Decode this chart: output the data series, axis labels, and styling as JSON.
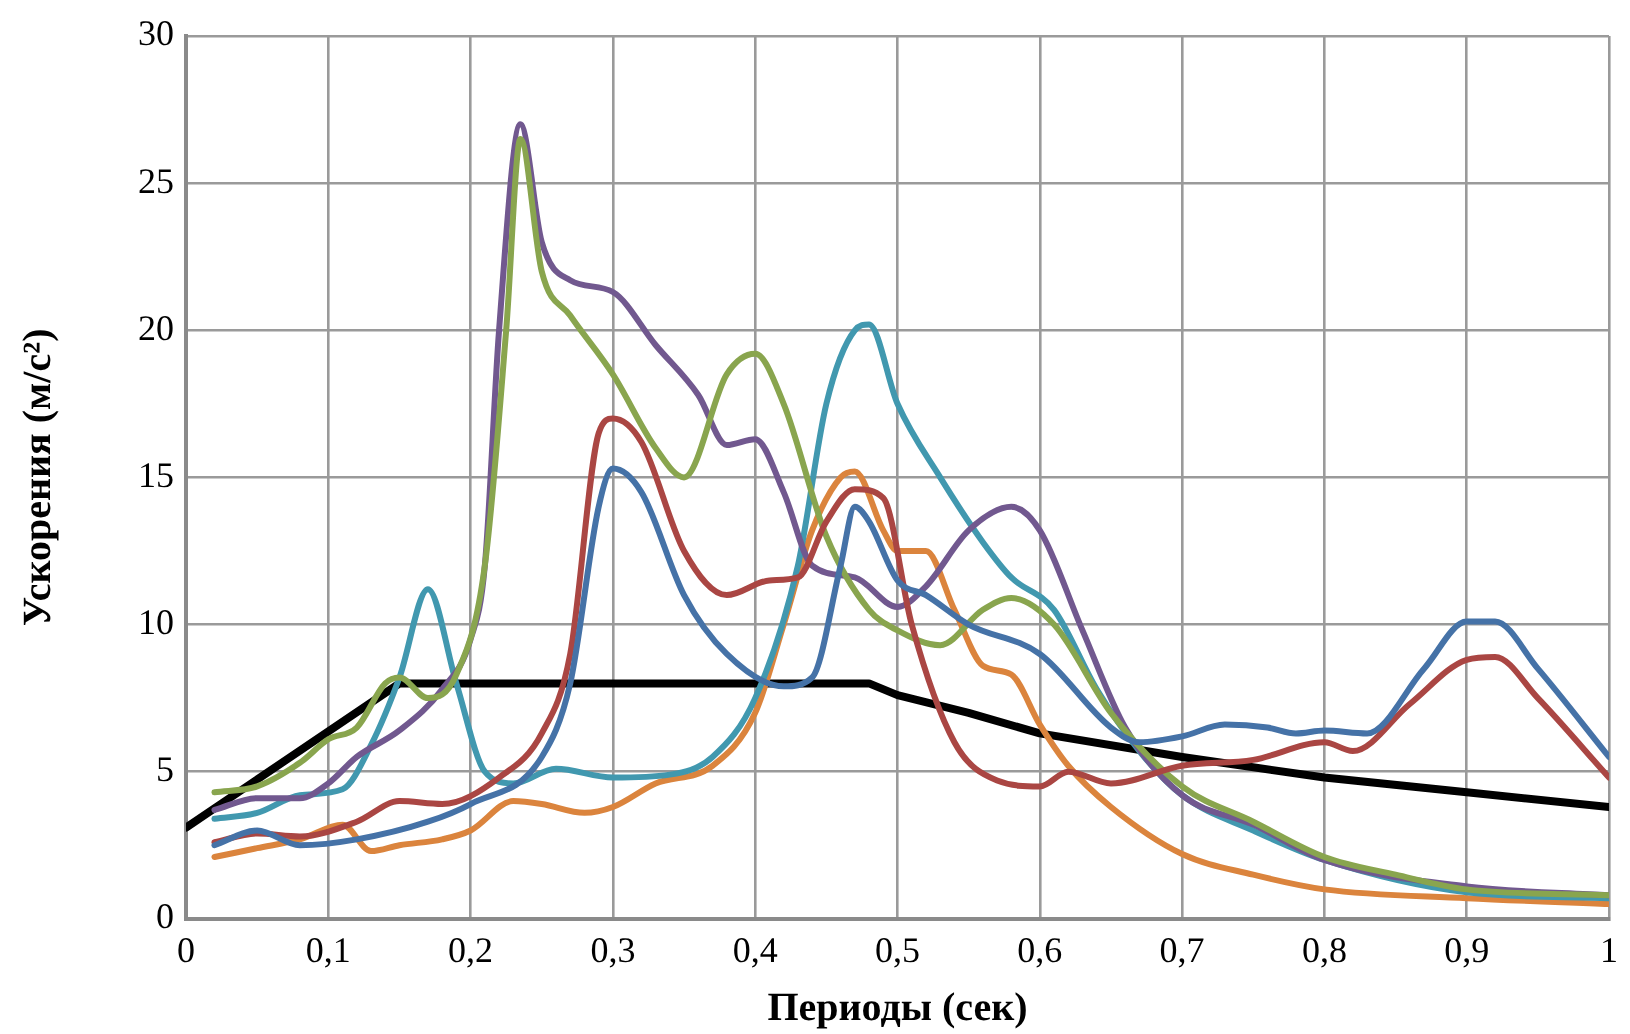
{
  "chart_data": {
    "type": "line",
    "xlabel": "Периоды (сек)",
    "ylabel": "Ускорения (м/с²)",
    "xlim": [
      0,
      1
    ],
    "ylim": [
      0,
      30
    ],
    "xticks": [
      0,
      {
        "value": 0.1,
        "label": "0,1"
      },
      {
        "value": 0.2,
        "label": "0,2"
      },
      {
        "value": 0.3,
        "label": "0,3"
      },
      {
        "value": 0.4,
        "label": "0,4"
      },
      {
        "value": 0.5,
        "label": "0,5"
      },
      {
        "value": 0.6,
        "label": "0,6"
      },
      {
        "value": 0.7,
        "label": "0,7"
      },
      {
        "value": 0.8,
        "label": "0,8"
      },
      {
        "value": 0.9,
        "label": "0,9"
      },
      1
    ],
    "yticks": [
      0,
      5,
      10,
      15,
      20,
      25,
      30
    ],
    "grid": true,
    "legend": false,
    "marker": "none",
    "line_style": "solid",
    "series": [
      {
        "color": "#4572a7",
        "x": [
          0.02,
          0.05,
          0.08,
          0.12,
          0.17,
          0.2,
          0.25,
          0.27,
          0.29,
          0.3,
          0.32,
          0.35,
          0.38,
          0.42,
          0.44,
          0.46,
          0.47,
          0.48,
          0.5,
          0.52,
          0.55,
          0.6,
          0.65,
          0.67,
          0.7,
          0.73,
          0.76,
          0.78,
          0.8,
          0.83,
          0.87,
          0.9,
          0.92,
          0.95,
          1
        ],
        "values": [
          2.5,
          3.0,
          2.5,
          2.7,
          3.3,
          3.9,
          5.5,
          8,
          14,
          15.3,
          14.5,
          11,
          9,
          7.9,
          8.2,
          12,
          14,
          13.5,
          11.5,
          11,
          10,
          9,
          6.5,
          6,
          6.2,
          6.6,
          6.5,
          6.3,
          6.4,
          6.3,
          8.5,
          10.1,
          10.1,
          8.5,
          5.5
        ]
      },
      {
        "color": "#aa4643",
        "x": [
          0.02,
          0.05,
          0.08,
          0.12,
          0.15,
          0.18,
          0.22,
          0.25,
          0.27,
          0.29,
          0.3,
          0.32,
          0.35,
          0.38,
          0.41,
          0.43,
          0.45,
          0.47,
          0.49,
          0.51,
          0.54,
          0.57,
          0.6,
          0.62,
          0.65,
          0.7,
          0.75,
          0.8,
          0.82,
          0.86,
          0.9,
          0.92,
          0.95,
          1
        ],
        "values": [
          2.6,
          2.9,
          2.8,
          3.3,
          4.0,
          3.9,
          4.8,
          6.3,
          9,
          16.5,
          17,
          16.2,
          12.5,
          11,
          11.5,
          11.6,
          13.5,
          14.6,
          14.3,
          10,
          6,
          4.7,
          4.5,
          5,
          4.6,
          5.2,
          5.4,
          6.0,
          5.7,
          7.3,
          8.8,
          8.9,
          7.5,
          4.8
        ]
      },
      {
        "color": "#89a54e",
        "x": [
          0.02,
          0.05,
          0.08,
          0.1,
          0.12,
          0.14,
          0.15,
          0.17,
          0.19,
          0.21,
          0.225,
          0.235,
          0.25,
          0.27,
          0.3,
          0.33,
          0.35,
          0.38,
          0.4,
          0.42,
          0.45,
          0.48,
          0.5,
          0.53,
          0.56,
          0.58,
          0.61,
          0.65,
          0.7,
          0.75,
          0.8,
          0.85,
          0.9,
          1
        ],
        "values": [
          4.3,
          4.5,
          5.3,
          6.1,
          6.5,
          8.0,
          8.2,
          7.5,
          8.3,
          12,
          20,
          26.5,
          22,
          20.5,
          18.5,
          16,
          15,
          18.5,
          19.2,
          17.5,
          13,
          10.5,
          9.8,
          9.3,
          10.5,
          10.9,
          10,
          7,
          4.5,
          3.3,
          2.1,
          1.5,
          1.0,
          0.8
        ]
      },
      {
        "color": "#71588f",
        "x": [
          0.02,
          0.05,
          0.08,
          0.1,
          0.12,
          0.15,
          0.18,
          0.2,
          0.21,
          0.22,
          0.235,
          0.25,
          0.27,
          0.3,
          0.33,
          0.36,
          0.38,
          0.4,
          0.42,
          0.44,
          0.47,
          0.5,
          0.52,
          0.55,
          0.58,
          0.6,
          0.63,
          0.66,
          0.7,
          0.75,
          0.8,
          0.9,
          1
        ],
        "values": [
          3.7,
          4.1,
          4.1,
          4.6,
          5.5,
          6.4,
          7.8,
          9.5,
          12,
          20,
          27,
          23,
          21.7,
          21.3,
          19.5,
          17.8,
          16.1,
          16.3,
          14.5,
          12,
          11.6,
          10.6,
          11.3,
          13.2,
          14.0,
          13.2,
          9.8,
          6.5,
          4.2,
          3.2,
          2.0,
          1.1,
          0.8
        ]
      },
      {
        "color": "#4198af",
        "x": [
          0.02,
          0.05,
          0.08,
          0.11,
          0.13,
          0.15,
          0.17,
          0.19,
          0.21,
          0.23,
          0.26,
          0.3,
          0.34,
          0.37,
          0.4,
          0.43,
          0.45,
          0.47,
          0.48,
          0.5,
          0.53,
          0.56,
          0.58,
          0.61,
          0.64,
          0.67,
          0.7,
          0.75,
          0.8,
          0.9,
          1
        ],
        "values": [
          3.4,
          3.6,
          4.2,
          4.4,
          5.9,
          8.2,
          11.2,
          8.0,
          5.0,
          4.6,
          5.1,
          4.8,
          4.9,
          5.5,
          7.5,
          12,
          17.5,
          20.0,
          20.2,
          17.5,
          15,
          12.8,
          11.6,
          10.5,
          7.8,
          5.7,
          4.2,
          3.0,
          2.0,
          0.9,
          0.7
        ]
      },
      {
        "color": "#db843d",
        "x": [
          0.02,
          0.05,
          0.08,
          0.11,
          0.13,
          0.15,
          0.18,
          0.2,
          0.23,
          0.25,
          0.28,
          0.3,
          0.33,
          0.37,
          0.4,
          0.42,
          0.44,
          0.46,
          0.47,
          0.49,
          0.5,
          0.52,
          0.54,
          0.56,
          0.58,
          0.6,
          0.62,
          0.65,
          0.7,
          0.75,
          0.8,
          0.9,
          1
        ],
        "values": [
          2.1,
          2.4,
          2.7,
          3.2,
          2.3,
          2.5,
          2.7,
          3.0,
          4.0,
          3.9,
          3.6,
          3.8,
          4.6,
          5.2,
          7.0,
          10,
          13.2,
          15,
          15.2,
          13.2,
          12.5,
          12.5,
          10.5,
          8.6,
          8.3,
          6.6,
          5.2,
          3.8,
          2.2,
          1.5,
          1.0,
          0.7,
          0.5
        ]
      },
      {
        "color": "#000000",
        "x": [
          0,
          0.15,
          0.48,
          0.5,
          0.55,
          0.6,
          0.7,
          0.8,
          0.9,
          1
        ],
        "values": [
          3.1,
          8,
          8,
          7.6,
          7.0,
          6.3,
          5.5,
          4.8,
          4.3,
          3.8
        ]
      }
    ]
  }
}
